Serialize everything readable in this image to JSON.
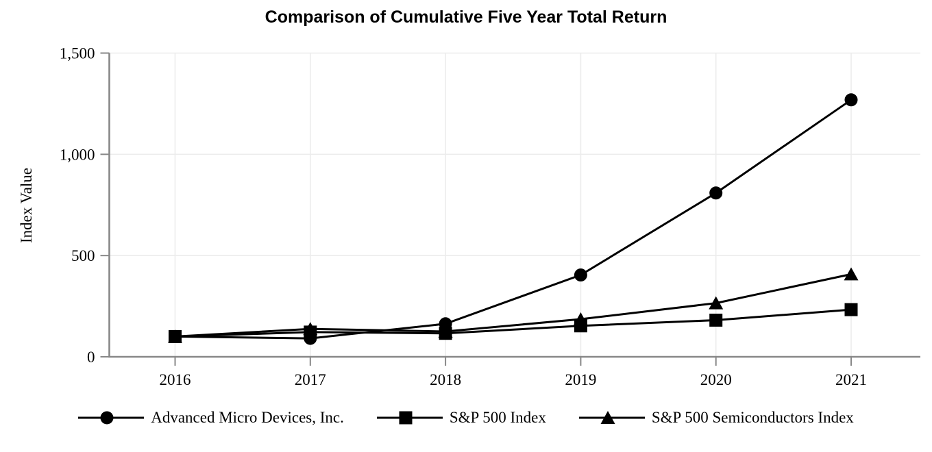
{
  "chart_data": {
    "type": "line",
    "title": "Comparison of Cumulative Five Year Total Return",
    "xlabel": "",
    "ylabel": "Index Value",
    "x": [
      2016,
      2017,
      2018,
      2019,
      2020,
      2021
    ],
    "x_tick_labels": [
      "2016",
      "2017",
      "2018",
      "2019",
      "2020",
      "2021"
    ],
    "y_ticks": [
      0,
      500,
      1000,
      1500
    ],
    "y_tick_labels": [
      "0",
      "500",
      "1,000",
      "1,500"
    ],
    "ylim": [
      0,
      1500
    ],
    "grid": true,
    "legend_position": "bottom",
    "series": [
      {
        "name": "Advanced Micro Devices, Inc.",
        "marker": "circle",
        "color": "#000000",
        "values": [
          100,
          91,
          163,
          404,
          809,
          1269
        ]
      },
      {
        "name": "S&P 500 Index",
        "marker": "square",
        "color": "#000000",
        "values": [
          100,
          122,
          116,
          153,
          181,
          233
        ]
      },
      {
        "name": "S&P 500 Semiconductors Index",
        "marker": "triangle",
        "color": "#000000",
        "values": [
          100,
          138,
          125,
          186,
          265,
          408
        ]
      }
    ]
  },
  "colors": {
    "axis": "#888888",
    "gridline": "#ececec",
    "text": "#000000",
    "series_line": "#000000",
    "background": "#ffffff"
  }
}
